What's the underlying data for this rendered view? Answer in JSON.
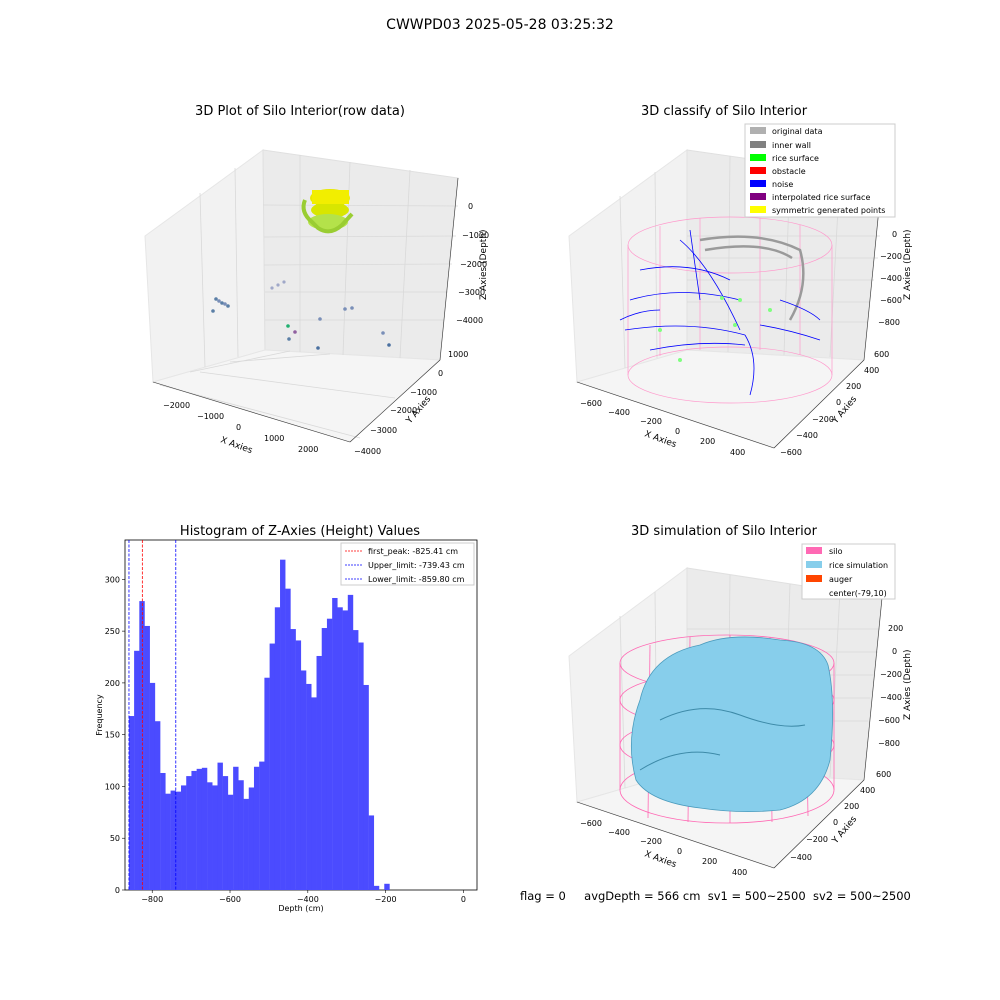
{
  "figure": {
    "suptitle": "CWWPD03 2025-05-28 03:25:32",
    "status_line": {
      "flag": "flag = 0",
      "avg_depth": "avgDepth = 566 cm",
      "sv1": "sv1 = 500~2500",
      "sv2": "sv2 = 500~2500"
    }
  },
  "panels": {
    "raw": {
      "title": "3D Plot of Silo Interior(row data)",
      "xlabel": "X Axies",
      "ylabel": "Y Axies",
      "zlabel": "Z Axies (Depth)",
      "xticks": [
        "−2000",
        "−1000",
        "0",
        "1000",
        "2000"
      ],
      "yticks": [
        "1000",
        "0",
        "−1000",
        "−2000",
        "−3000",
        "−4000"
      ],
      "zticks": [
        "0",
        "−1000",
        "−2000",
        "−3000",
        "−4000"
      ]
    },
    "classify": {
      "title": "3D classify of Silo Interior",
      "xlabel": "X Axies",
      "ylabel": "Y Axies",
      "zlabel": "Z Axies (Depth)",
      "xticks": [
        "−600",
        "−400",
        "−200",
        "0",
        "200",
        "400"
      ],
      "yticks": [
        "600",
        "400",
        "200",
        "0",
        "−200",
        "−400",
        "−600"
      ],
      "zticks": [
        "0",
        "−200",
        "−400",
        "−600",
        "−800"
      ],
      "legend": [
        {
          "label": "original data",
          "color": "#b0b0b0"
        },
        {
          "label": "inner wall",
          "color": "#808080"
        },
        {
          "label": "rice surface",
          "color": "#00ff00"
        },
        {
          "label": "obstacle",
          "color": "#ff0000"
        },
        {
          "label": "noise",
          "color": "#0000ff"
        },
        {
          "label": "interpolated rice surface",
          "color": "#800080"
        },
        {
          "label": "symmetric generated points",
          "color": "#ffff00"
        }
      ]
    },
    "simulation": {
      "title": "3D simulation of Silo Interior",
      "xlabel": "X Axies",
      "ylabel": "Y Axies",
      "zlabel": "Z Axies (Depth)",
      "xticks": [
        "−600",
        "−400",
        "−200",
        "0",
        "200",
        "400"
      ],
      "yticks": [
        "600",
        "400",
        "200",
        "0",
        "−200",
        "−400"
      ],
      "zticks": [
        "200",
        "0",
        "−200",
        "−400",
        "−600",
        "−800"
      ],
      "legend": [
        {
          "label": "silo",
          "color": "#ff69b4"
        },
        {
          "label": "rice simulation",
          "color": "#87ceeb"
        },
        {
          "label": "auger",
          "color": "#ff4500"
        },
        {
          "label": "center(-79,10)",
          "color": ""
        }
      ]
    }
  },
  "chart_data": {
    "type": "bar",
    "title": "Histogram of Z-Axies (Height) Values",
    "xlabel": "Depth (cm)",
    "ylabel": "Frequency",
    "xlim": [
      -870,
      35
    ],
    "ylim": [
      0,
      338
    ],
    "xticks": [
      -800,
      -600,
      -400,
      -200,
      0
    ],
    "xtick_labels": [
      "−800",
      "−600",
      "−400",
      "−200",
      "0"
    ],
    "yticks": [
      0,
      50,
      100,
      150,
      200,
      250,
      300
    ],
    "bar_color": "#4b4bff",
    "bin_width": 13.4,
    "bin_start": -860,
    "values": [
      168,
      231,
      279,
      255,
      200,
      163,
      113,
      93,
      96,
      95,
      101,
      110,
      115,
      117,
      118,
      104,
      101,
      123,
      110,
      92,
      119,
      106,
      88,
      99,
      119,
      124,
      205,
      238,
      273,
      319,
      291,
      252,
      241,
      212,
      199,
      186,
      226,
      253,
      262,
      282,
      273,
      270,
      285,
      251,
      239,
      198,
      72,
      4,
      0,
      6
    ],
    "vlines": [
      {
        "x": -825.41,
        "color": "#ff0000",
        "label": "first_peak: -825.41 cm"
      },
      {
        "x": -739.43,
        "color": "#0000ff",
        "label": "Upper_limit: -739.43 cm"
      },
      {
        "x": -859.8,
        "color": "#0000ff",
        "label": "Lower_limit: -859.80 cm"
      }
    ],
    "legend_position": "top-right"
  }
}
